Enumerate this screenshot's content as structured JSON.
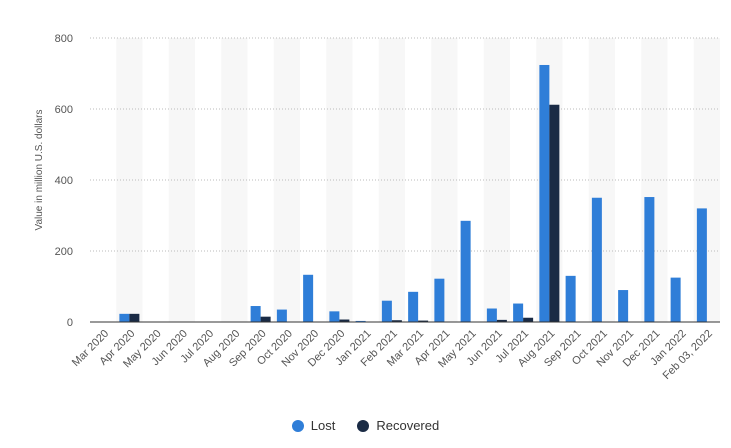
{
  "chart_data": {
    "type": "bar",
    "title": "",
    "xlabel": "",
    "ylabel": "Value in million U.S. dollars",
    "ylim": [
      0,
      800
    ],
    "yticks": [
      0,
      200,
      400,
      600,
      800
    ],
    "grid": true,
    "legend_position": "bottom",
    "categories": [
      "Mar 2020",
      "Apr 2020",
      "May 2020",
      "Jun 2020",
      "Jul 2020",
      "Aug 2020",
      "Sep 2020",
      "Oct 2020",
      "Nov 2020",
      "Dec 2020",
      "Jan 2021",
      "Feb 2021",
      "Mar 2021",
      "Apr 2021",
      "May 2021",
      "Jun 2021",
      "Jul 2021",
      "Aug 2021",
      "Sep 2021",
      "Oct 2021",
      "Nov 2021",
      "Dec 2021",
      "Jan 2022",
      "Feb 03, 2022"
    ],
    "series": [
      {
        "name": "Lost",
        "color": "#2f7ed8",
        "values": [
          0,
          23,
          0,
          0,
          0,
          0,
          45,
          35,
          133,
          30,
          3,
          60,
          85,
          122,
          285,
          38,
          52,
          724,
          130,
          350,
          90,
          352,
          125,
          320
        ]
      },
      {
        "name": "Recovered",
        "color": "#1a2b45",
        "values": [
          0,
          23,
          0,
          0,
          0,
          0,
          15,
          0,
          0,
          7,
          0,
          5,
          4,
          0,
          0,
          6,
          12,
          612,
          0,
          0,
          0,
          0,
          0,
          0
        ]
      }
    ]
  }
}
